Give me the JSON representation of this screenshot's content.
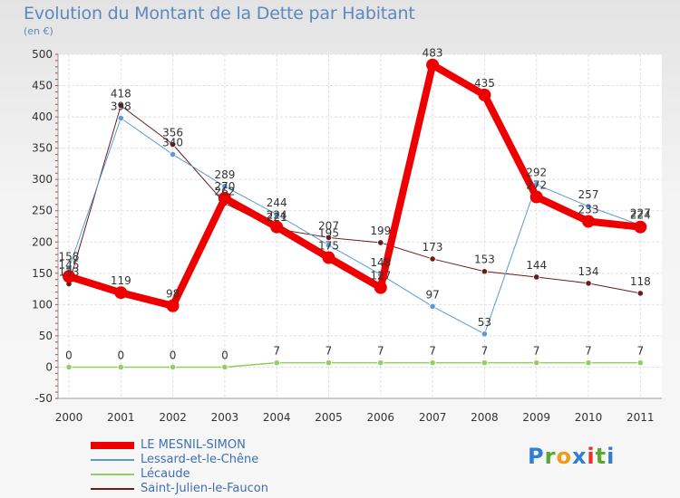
{
  "title": "Evolution du Montant de la Dette par Habitant",
  "unit_label": "(en €)",
  "logo": {
    "text": "Proxiti"
  },
  "chart_data": {
    "type": "line",
    "title": "Evolution du Montant de la Dette par Habitant",
    "ylabel": "(en €)",
    "xlabel": "",
    "categories": [
      "2000",
      "2001",
      "2002",
      "2003",
      "2004",
      "2005",
      "2006",
      "2007",
      "2008",
      "2009",
      "2010",
      "2011"
    ],
    "y_ticks": [
      -50,
      0,
      50,
      100,
      150,
      200,
      250,
      300,
      350,
      400,
      450,
      500
    ],
    "ylim": [
      -50,
      500
    ],
    "grid": true,
    "legend_placement": "bottom-left",
    "series": [
      {
        "name": "Saint-Julien-le-Faucon",
        "color": "#6b1b1b",
        "width": 1,
        "values": [
          133,
          418,
          356,
          262,
          221,
          207,
          199,
          173,
          153,
          144,
          134,
          118
        ]
      },
      {
        "name": "Lessard-et-le-Chêne",
        "color": "#5a9bd5",
        "width": 1,
        "values": [
          158,
          398,
          340,
          289,
          244,
          195,
          148,
          97,
          53,
          292,
          257,
          227
        ]
      },
      {
        "name": "Lécaude",
        "color": "#90d060",
        "width": 1.5,
        "values": [
          0,
          0,
          0,
          0,
          7,
          7,
          7,
          7,
          7,
          7,
          7,
          7
        ]
      },
      {
        "name": "LE MESNIL-SIMON",
        "color": "#ee0000",
        "width": 8,
        "values": [
          145,
          119,
          98,
          270,
          224,
          175,
          127,
          483,
          435,
          272,
          233,
          224
        ]
      }
    ],
    "data_labels": [
      [
        "158",
        "145",
        "133",
        "418",
        "398",
        "356",
        "340",
        "289",
        "270",
        "262",
        "244",
        "224",
        "221",
        "207",
        "195",
        "175",
        "199",
        "148",
        "127",
        "483",
        "435",
        "173",
        "97",
        "153",
        "53",
        "292",
        "272",
        "144",
        "257",
        "233",
        "134",
        "227",
        "224",
        "118",
        "98",
        "119"
      ],
      [
        "0",
        "0",
        "0",
        "0",
        "7",
        "7",
        "7",
        "7",
        "7",
        "7",
        "7",
        "7"
      ]
    ]
  },
  "legend": [
    {
      "label": "LE MESNIL-SIMON",
      "color": "#ee0000",
      "width": 8
    },
    {
      "label": "Lessard-et-le-Chêne",
      "color": "#5a9bd5",
      "width": 2
    },
    {
      "label": "Lécaude",
      "color": "#90d060",
      "width": 2
    },
    {
      "label": "Saint-Julien-le-Faucon",
      "color": "#6b1b1b",
      "width": 2
    }
  ]
}
